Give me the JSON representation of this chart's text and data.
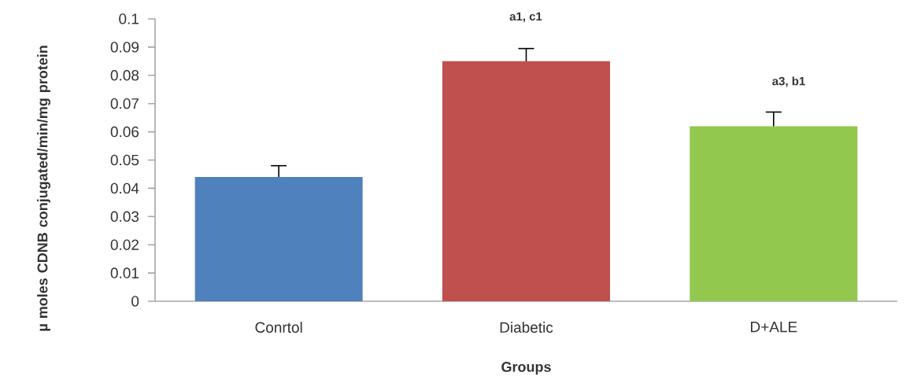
{
  "chart_data": {
    "type": "bar",
    "xlabel": "Groups",
    "ylabel": "µ moles CDNB conjugated/min/mg protein",
    "categories": [
      "Conrtol",
      "Diabetic",
      "D+ALE"
    ],
    "values": [
      0.044,
      0.085,
      0.062
    ],
    "errors": [
      0.004,
      0.0045,
      0.005
    ],
    "colors": [
      "#4f81bd",
      "#c0504d",
      "#92c84e"
    ],
    "ylim": [
      0,
      0.1
    ],
    "yticks": [
      0,
      0.01,
      0.02,
      0.03,
      0.04,
      0.05,
      0.06,
      0.07,
      0.08,
      0.09,
      0.1
    ],
    "annotations": [
      "a1, c1",
      "a3, b1"
    ],
    "grid": false
  }
}
